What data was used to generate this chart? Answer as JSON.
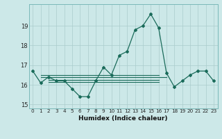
{
  "xlabel": "Humidex (Indice chaleur)",
  "x_values": [
    0,
    1,
    2,
    3,
    4,
    5,
    6,
    7,
    8,
    9,
    10,
    11,
    12,
    13,
    14,
    15,
    16,
    17,
    18,
    19,
    20,
    21,
    22,
    23
  ],
  "y_values": [
    16.7,
    16.1,
    16.4,
    16.2,
    16.2,
    15.8,
    15.4,
    15.4,
    16.2,
    16.9,
    16.5,
    17.5,
    17.7,
    18.8,
    19.0,
    19.6,
    18.9,
    16.6,
    15.9,
    16.2,
    16.5,
    16.7,
    16.7,
    16.2
  ],
  "ylim": [
    14.8,
    20.1
  ],
  "yticks": [
    15,
    16,
    17,
    18,
    19
  ],
  "xticks": [
    0,
    1,
    2,
    3,
    4,
    5,
    6,
    7,
    8,
    9,
    10,
    11,
    12,
    13,
    14,
    15,
    16,
    17,
    18,
    19,
    20,
    21,
    22,
    23
  ],
  "line_color": "#1a6b5a",
  "marker": "D",
  "marker_size": 2.0,
  "bg_color": "#cce8e8",
  "grid_color": "#aacccc",
  "fig_bg": "#cce8e8",
  "ref_lines": [
    {
      "x0": 1,
      "x1": 17,
      "y": 16.4
    },
    {
      "x0": 1,
      "x1": 16,
      "y": 16.5
    },
    {
      "x0": 2,
      "x1": 16,
      "y": 16.25
    },
    {
      "x0": 2,
      "x1": 16,
      "y": 16.15
    }
  ]
}
